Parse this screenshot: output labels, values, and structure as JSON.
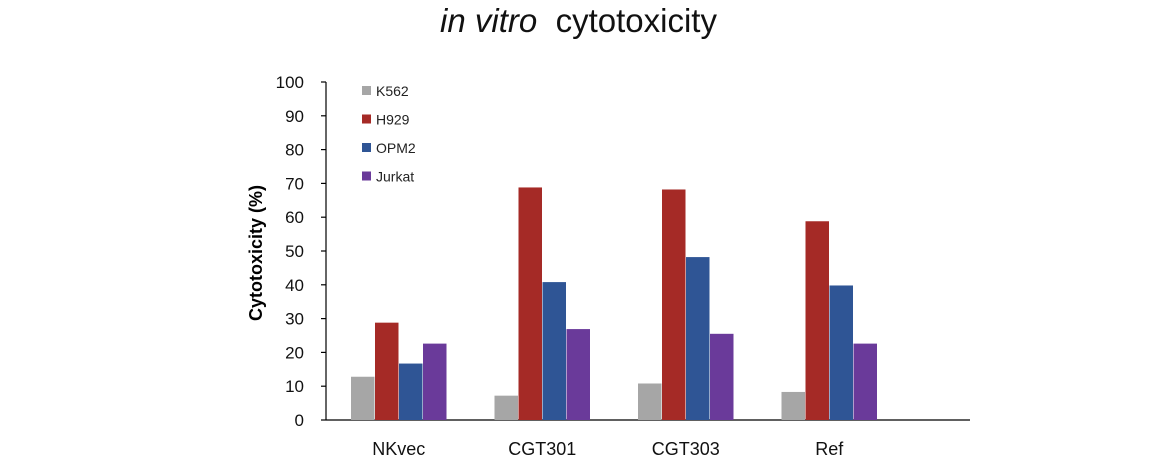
{
  "chart_data": {
    "type": "bar",
    "title_italic": "in vitro",
    "title_rest": "cytotoxicity",
    "ylabel": "Cytotoxicity (%)",
    "xlabel": "",
    "ylim": [
      0,
      100
    ],
    "yticks": [
      0,
      10,
      20,
      30,
      40,
      50,
      60,
      70,
      80,
      90,
      100
    ],
    "categories": [
      "NKvec",
      "CGT301",
      "CGT303",
      "Ref"
    ],
    "series": [
      {
        "name": "K562",
        "color": "#a6a6a6",
        "values": [
          12.8,
          7.2,
          10.8,
          8.3
        ]
      },
      {
        "name": "H929",
        "color": "#a52a26",
        "values": [
          28.8,
          68.8,
          68.2,
          58.8
        ]
      },
      {
        "name": "OPM2",
        "color": "#2f5595",
        "values": [
          16.7,
          40.8,
          48.2,
          39.8
        ]
      },
      {
        "name": "Jurkat",
        "color": "#6a3a9a",
        "values": [
          22.6,
          26.9,
          25.5,
          22.6
        ]
      }
    ],
    "legend_position": "top-left",
    "grid": false
  }
}
